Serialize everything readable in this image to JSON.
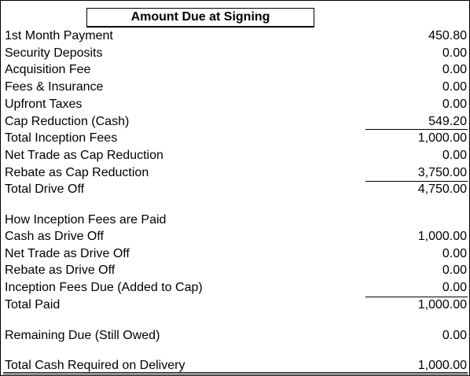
{
  "title": "Amount Due at Signing",
  "signing_rows": [
    {
      "label": "1st Month Payment",
      "value": "450.80"
    },
    {
      "label": "Security Deposits",
      "value": "0.00"
    },
    {
      "label": "Acquisition Fee",
      "value": "0.00"
    },
    {
      "label": "Fees & Insurance",
      "value": "0.00"
    },
    {
      "label": "Upfront Taxes",
      "value": "0.00"
    },
    {
      "label": "Cap Reduction (Cash)",
      "value": "549.20"
    },
    {
      "label": "Total Inception Fees",
      "value": "1,000.00"
    },
    {
      "label": "Net Trade as Cap Reduction",
      "value": "0.00"
    },
    {
      "label": "Rebate as Cap Reduction",
      "value": "3,750.00"
    },
    {
      "label": "Total Drive Off",
      "value": "4,750.00"
    }
  ],
  "paid_heading": "How Inception Fees are Paid",
  "paid_rows": [
    {
      "label": "Cash as Drive Off",
      "value": "1,000.00"
    },
    {
      "label": "Net Trade as Drive Off",
      "value": "0.00"
    },
    {
      "label": "Rebate as Drive Off",
      "value": "0.00"
    },
    {
      "label": "Inception Fees Due (Added to Cap)",
      "value": "0.00"
    },
    {
      "label": "Total Paid",
      "value": "1,000.00"
    }
  ],
  "remaining": {
    "label": "Remaining Due (Still Owed)",
    "value": "0.00"
  },
  "total_cash": {
    "label": "Total Cash Required on Delivery",
    "value": "1,000.00"
  }
}
